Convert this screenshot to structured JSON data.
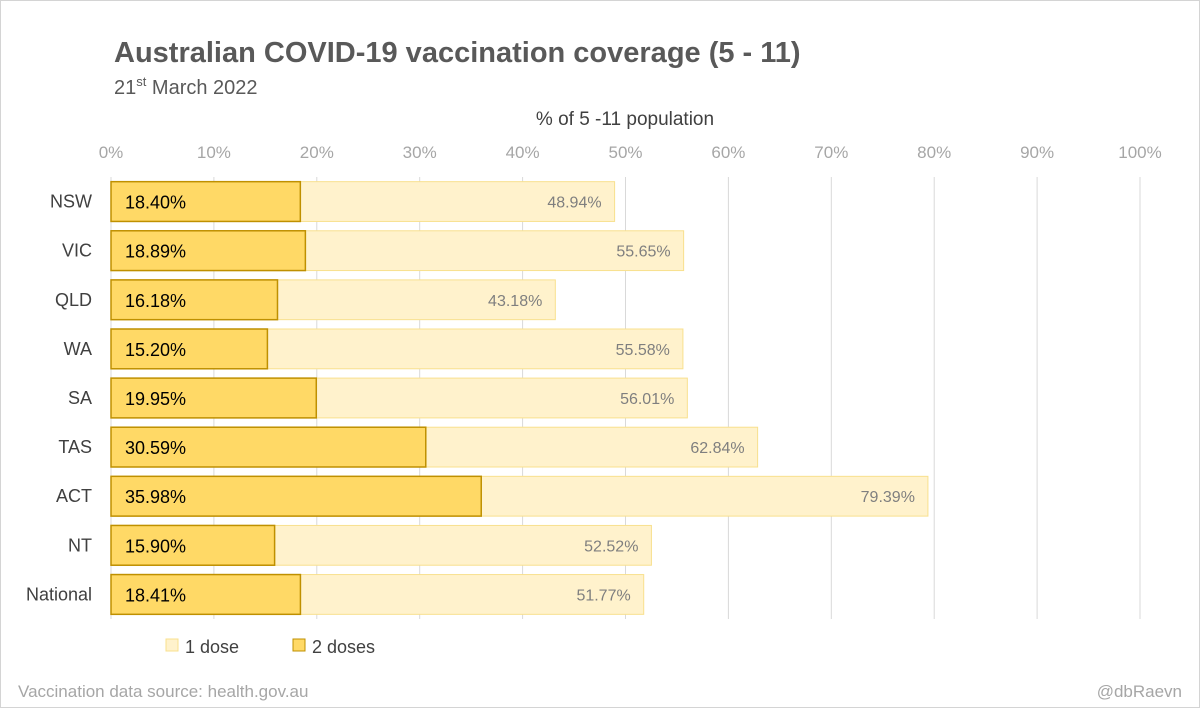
{
  "chart_data": {
    "type": "bar",
    "orientation": "horizontal",
    "title": "Australian COVID-19 vaccination coverage (5 - 11)",
    "subtitle_day": "21",
    "subtitle_sup": "st",
    "subtitle_rest": " March 2022",
    "xlabel": "% of 5 -11 population",
    "xlim": [
      0,
      100
    ],
    "x_ticks": [
      0,
      10,
      20,
      30,
      40,
      50,
      60,
      70,
      80,
      90,
      100
    ],
    "x_tick_labels": [
      "0%",
      "10%",
      "20%",
      "30%",
      "40%",
      "50%",
      "60%",
      "70%",
      "80%",
      "90%",
      "100%"
    ],
    "grid": true,
    "legend_position": "bottom-left",
    "categories": [
      "NSW",
      "VIC",
      "QLD",
      "WA",
      "SA",
      "TAS",
      "ACT",
      "NT",
      "National"
    ],
    "series": [
      {
        "name": "1 dose",
        "values": [
          48.94,
          55.65,
          43.18,
          55.58,
          56.01,
          62.84,
          79.39,
          52.52,
          51.77
        ],
        "labels": [
          "48.94%",
          "55.65%",
          "43.18%",
          "55.58%",
          "56.01%",
          "62.84%",
          "79.39%",
          "52.52%",
          "51.77%"
        ],
        "color": "#fff2cc",
        "stroke": "#f8e08e"
      },
      {
        "name": "2 doses",
        "values": [
          18.4,
          18.89,
          16.18,
          15.2,
          19.95,
          30.59,
          35.98,
          15.9,
          18.41
        ],
        "labels": [
          "18.40%",
          "18.89%",
          "16.18%",
          "15.20%",
          "19.95%",
          "30.59%",
          "35.98%",
          "15.90%",
          "18.41%"
        ],
        "color": "#ffd966",
        "stroke": "#bf9000"
      }
    ]
  },
  "footer": {
    "source": "Vaccination data source: health.gov.au",
    "credit": "@dbRaevn"
  }
}
